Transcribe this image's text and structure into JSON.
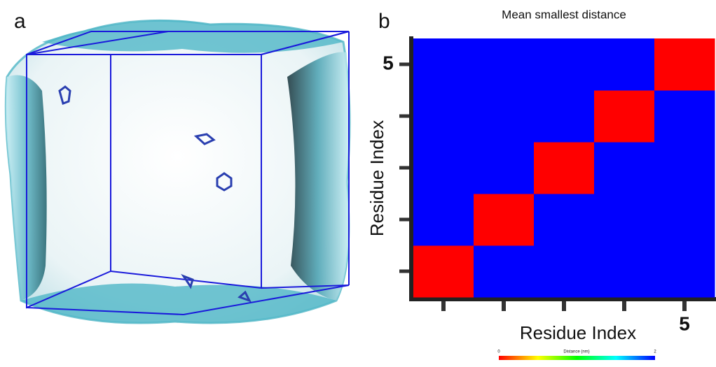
{
  "panel_labels": [
    "a",
    "b"
  ],
  "chart_data": {
    "type": "heatmap",
    "title": "Mean smallest distance",
    "x_label": "Residue Index",
    "y_label": "Residue Index",
    "x_categories": [
      null,
      null,
      null,
      null,
      "5"
    ],
    "y_categories": [
      null,
      null,
      null,
      null,
      "5"
    ],
    "values": [
      [
        0,
        2,
        2,
        2,
        2
      ],
      [
        2,
        0,
        2,
        2,
        2
      ],
      [
        2,
        2,
        0,
        2,
        2
      ],
      [
        2,
        2,
        2,
        0,
        2
      ],
      [
        2,
        2,
        2,
        2,
        0
      ]
    ],
    "colormap": [
      "#ff0000",
      "#ffff00",
      "#00ff00",
      "#00ffff",
      "#0000ff"
    ],
    "colorbar": {
      "label": "Distance (nm)",
      "range": [
        0,
        2
      ],
      "ticks": [
        0,
        2
      ]
    }
  }
}
